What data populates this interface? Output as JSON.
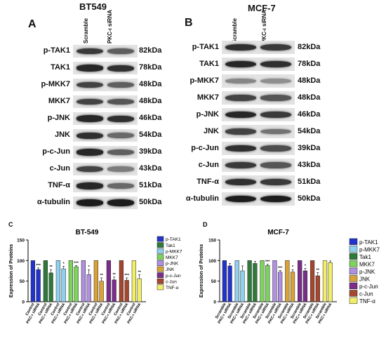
{
  "panel_A": {
    "letter": "A",
    "title": "BT549",
    "col_labels": [
      "Scramble",
      "PKC-ι siRNA"
    ],
    "rows": [
      {
        "label": "p-TAK1",
        "kda": "82kDa",
        "i1": 0.75,
        "i2": 0.55
      },
      {
        "label": "TAK1",
        "kda": "78kDa",
        "i1": 0.85,
        "i2": 0.8
      },
      {
        "label": "p-MKK7",
        "kda": "48kDa",
        "i1": 0.7,
        "i2": 0.55
      },
      {
        "label": "MKK7",
        "kda": "48kDa",
        "i1": 0.7,
        "i2": 0.6
      },
      {
        "label": "p-JNK",
        "kda": "46kDa",
        "i1": 0.85,
        "i2": 0.8
      },
      {
        "label": "JNK",
        "kda": "54kDa",
        "i1": 0.8,
        "i2": 0.5
      },
      {
        "label": "p-c-Jun",
        "kda": "39kDa",
        "i1": 0.85,
        "i2": 0.55
      },
      {
        "label": "c-Jun",
        "kda": "43kDa",
        "i1": 0.7,
        "i2": 0.4
      },
      {
        "label": "TNF-α",
        "kda": "51kDa",
        "i1": 0.85,
        "i2": 0.5
      },
      {
        "label": "α-tubulin",
        "kda": "50kDa",
        "i1": 0.9,
        "i2": 0.9
      }
    ]
  },
  "panel_B": {
    "letter": "B",
    "title": "MCF-7",
    "col_labels": [
      "Scramble",
      "PKC-ι siRNA"
    ],
    "rows": [
      {
        "label": "p-TAK1",
        "kda": "82kDa",
        "i1": 0.8,
        "i2": 0.75
      },
      {
        "label": "TAK1",
        "kda": "78kDa",
        "i1": 0.85,
        "i2": 0.8
      },
      {
        "label": "p-MKK7",
        "kda": "48kDa",
        "i1": 0.35,
        "i2": 0.3
      },
      {
        "label": "MKK7",
        "kda": "48kDa",
        "i1": 0.7,
        "i2": 0.6
      },
      {
        "label": "p-JNK",
        "kda": "46kDa",
        "i1": 0.85,
        "i2": 0.75
      },
      {
        "label": "JNK",
        "kda": "54kDa",
        "i1": 0.7,
        "i2": 0.45
      },
      {
        "label": "p-c-Jun",
        "kda": "39kDa",
        "i1": 0.8,
        "i2": 0.65
      },
      {
        "label": "c-Jun",
        "kda": "43kDa",
        "i1": 0.75,
        "i2": 0.6
      },
      {
        "label": "TNF-α",
        "kda": "51kDa",
        "i1": 0.8,
        "i2": 0.75
      },
      {
        "label": "α-tubulin",
        "kda": "50kDa",
        "i1": 0.9,
        "i2": 0.9
      }
    ]
  },
  "chart_data": [
    {
      "panel": "C",
      "type": "bar",
      "title": "BT-549",
      "ylabel": "Expression of Proteins",
      "ylim": [
        0,
        150
      ],
      "yticks": [
        0,
        50,
        100,
        150
      ],
      "tick_labels": [
        "Control",
        "PKC-ι siRNA"
      ],
      "legend_position": "right",
      "series": [
        {
          "name": "p-TAK1",
          "color": "#2233cc",
          "values": [
            100,
            78
          ],
          "errors": [
            0,
            4
          ],
          "sig": "***"
        },
        {
          "name": "Tak1",
          "color": "#2e7a3a",
          "values": [
            100,
            70
          ],
          "errors": [
            0,
            8
          ],
          "sig": "**"
        },
        {
          "name": "p-MKK7",
          "color": "#8fd0ee",
          "values": [
            100,
            80
          ],
          "errors": [
            0,
            6
          ],
          "sig": "*"
        },
        {
          "name": "MKK7",
          "color": "#7cd45a",
          "values": [
            100,
            85
          ],
          "errors": [
            0,
            3
          ],
          "sig": "***"
        },
        {
          "name": "p-JNK",
          "color": "#b090e0",
          "values": [
            100,
            66
          ],
          "errors": [
            0,
            12
          ],
          "sig": "*"
        },
        {
          "name": "JNK",
          "color": "#d9a238",
          "values": [
            100,
            50
          ],
          "errors": [
            0,
            8
          ],
          "sig": "**"
        },
        {
          "name": "p-c-Jun",
          "color": "#7a2e8a",
          "values": [
            100,
            53
          ],
          "errors": [
            0,
            7
          ],
          "sig": "**"
        },
        {
          "name": "c-Jun",
          "color": "#a5462e",
          "values": [
            100,
            52
          ],
          "errors": [
            0,
            6
          ],
          "sig": "***"
        },
        {
          "name": "TNF-α",
          "color": "#f2ee6a",
          "values": [
            100,
            56
          ],
          "errors": [
            0,
            10
          ],
          "sig": "**"
        }
      ]
    },
    {
      "panel": "D",
      "type": "bar",
      "title": "MCF-7",
      "ylabel": "Expression of Proteins",
      "ylim": [
        0,
        150
      ],
      "yticks": [
        0,
        50,
        100,
        150
      ],
      "tick_labels": [
        "Scramble",
        "PKC-ι siRNA"
      ],
      "legend_position": "right",
      "series": [
        {
          "name": "p-TAK1",
          "color": "#2233cc",
          "values": [
            100,
            87
          ],
          "errors": [
            0,
            6
          ],
          "sig": ""
        },
        {
          "name": "p-MKK7",
          "color": "#8fd0ee",
          "values": [
            100,
            75
          ],
          "errors": [
            0,
            12
          ],
          "sig": ""
        },
        {
          "name": "Tak1",
          "color": "#2e7a3a",
          "values": [
            100,
            93
          ],
          "errors": [
            0,
            5
          ],
          "sig": ""
        },
        {
          "name": "MKK7",
          "color": "#7cd45a",
          "values": [
            100,
            88
          ],
          "errors": [
            0,
            3
          ],
          "sig": "***"
        },
        {
          "name": "p-JNK",
          "color": "#b090e0",
          "values": [
            100,
            72
          ],
          "errors": [
            0,
            4
          ],
          "sig": "***"
        },
        {
          "name": "JNK",
          "color": "#d9a238",
          "values": [
            100,
            72
          ],
          "errors": [
            0,
            6
          ],
          "sig": "*"
        },
        {
          "name": "p-c-Jun",
          "color": "#7a2e8a",
          "values": [
            100,
            75
          ],
          "errors": [
            0,
            6
          ],
          "sig": "*"
        },
        {
          "name": "c-Jun",
          "color": "#a5462e",
          "values": [
            100,
            63
          ],
          "errors": [
            0,
            8
          ],
          "sig": "**"
        },
        {
          "name": "TNF-α",
          "color": "#f2ee6a",
          "values": [
            100,
            95
          ],
          "errors": [
            0,
            4
          ],
          "sig": ""
        }
      ]
    }
  ]
}
